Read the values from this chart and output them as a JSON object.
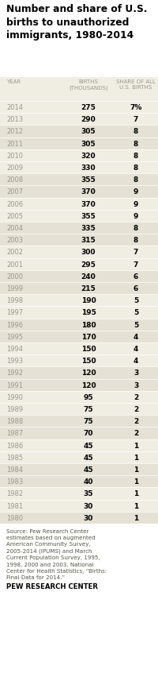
{
  "title": "Number and share of U.S.\nbirths to unauthorized\nimmigrants, 1980-2014",
  "col_headers_line1": [
    "YEAR",
    "BIRTHS",
    "SHARE OF ALL"
  ],
  "col_headers_line2": [
    "",
    "(THOUSANDS)",
    "U.S. BIRTHS"
  ],
  "rows": [
    {
      "year": "2014",
      "births": "275",
      "share": "7%"
    },
    {
      "year": "2013",
      "births": "290",
      "share": "7"
    },
    {
      "year": "2012",
      "births": "305",
      "share": "8"
    },
    {
      "year": "2011",
      "births": "305",
      "share": "8"
    },
    {
      "year": "2010",
      "births": "320",
      "share": "8"
    },
    {
      "year": "2009",
      "births": "330",
      "share": "8"
    },
    {
      "year": "2008",
      "births": "355",
      "share": "8"
    },
    {
      "year": "2007",
      "births": "370",
      "share": "9"
    },
    {
      "year": "2006",
      "births": "370",
      "share": "9"
    },
    {
      "year": "2005",
      "births": "355",
      "share": "9"
    },
    {
      "year": "2004",
      "births": "335",
      "share": "8"
    },
    {
      "year": "2003",
      "births": "315",
      "share": "8"
    },
    {
      "year": "2002",
      "births": "300",
      "share": "7"
    },
    {
      "year": "2001",
      "births": "295",
      "share": "7"
    },
    {
      "year": "2000",
      "births": "240",
      "share": "6"
    },
    {
      "year": "1999",
      "births": "215",
      "share": "6"
    },
    {
      "year": "1998",
      "births": "190",
      "share": "5"
    },
    {
      "year": "1997",
      "births": "195",
      "share": "5"
    },
    {
      "year": "1996",
      "births": "180",
      "share": "5"
    },
    {
      "year": "1995",
      "births": "170",
      "share": "4"
    },
    {
      "year": "1994",
      "births": "150",
      "share": "4"
    },
    {
      "year": "1993",
      "births": "150",
      "share": "4"
    },
    {
      "year": "1992",
      "births": "120",
      "share": "3"
    },
    {
      "year": "1991",
      "births": "120",
      "share": "3"
    },
    {
      "year": "1990",
      "births": "95",
      "share": "2"
    },
    {
      "year": "1989",
      "births": "75",
      "share": "2"
    },
    {
      "year": "1988",
      "births": "75",
      "share": "2"
    },
    {
      "year": "1987",
      "births": "70",
      "share": "2"
    },
    {
      "year": "1986",
      "births": "45",
      "share": "1"
    },
    {
      "year": "1985",
      "births": "45",
      "share": "1"
    },
    {
      "year": "1984",
      "births": "45",
      "share": "1"
    },
    {
      "year": "1983",
      "births": "40",
      "share": "1"
    },
    {
      "year": "1982",
      "births": "35",
      "share": "1"
    },
    {
      "year": "1981",
      "births": "30",
      "share": "1"
    },
    {
      "year": "1980",
      "births": "30",
      "share": "1"
    }
  ],
  "source_text": "Source: Pew Research Center\nestimates based on augmented\nAmerican Community Survey,\n2005-2014 (IPUMS) and March\nCurrent Population Survey, 1995,\n1998, 2000 and 2003. National\nCenter for Health Statistics, “Births:\nFinal Data for 2014.”",
  "footer": "PEW RESEARCH CENTER",
  "bg_light": "#f0ede3",
  "bg_dark": "#e5e1d5",
  "header_color": "#999988",
  "year_color": "#999988",
  "data_color": "#000000",
  "source_color": "#555544",
  "footer_color": "#000000",
  "title_color": "#000000",
  "white": "#ffffff"
}
